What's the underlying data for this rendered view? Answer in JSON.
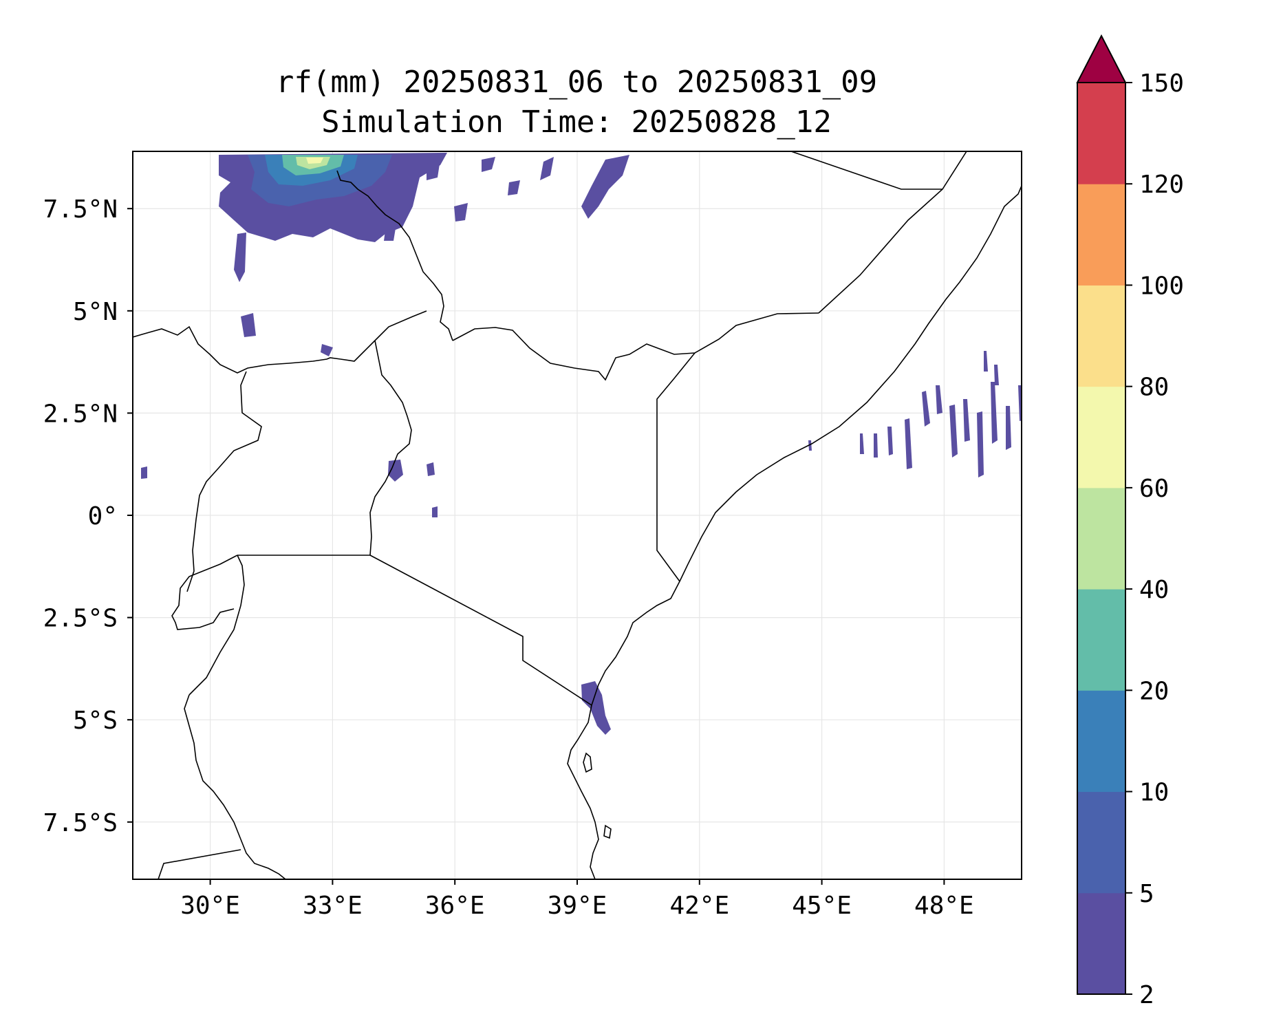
{
  "title": "rf(mm) 20250831_06 to 20250831_09",
  "subtitle": "Simulation Time: 20250828_12",
  "map": {
    "lon_range": [
      28.1,
      49.9
    ],
    "lat_range": [
      -8.9,
      8.9
    ],
    "x_ticks": [
      "30°E",
      "33°E",
      "36°E",
      "39°E",
      "42°E",
      "45°E",
      "48°E"
    ],
    "y_ticks": [
      "7.5°N",
      "5°N",
      "2.5°N",
      "0°",
      "2.5°S",
      "5°S",
      "7.5°S"
    ],
    "gridlines": true,
    "border_color": "#000000"
  },
  "colorbar": {
    "levels": [
      "2",
      "5",
      "10",
      "20",
      "40",
      "60",
      "80",
      "100",
      "120",
      "150"
    ],
    "colors": [
      "#5a4fa1",
      "#4a62ad",
      "#3a80b9",
      "#63bda9",
      "#bde4a0",
      "#f3f8ad",
      "#fbdf8b",
      "#f99d59",
      "#d43f4e"
    ],
    "extend_color": "#9e0142",
    "extend": "max"
  }
}
